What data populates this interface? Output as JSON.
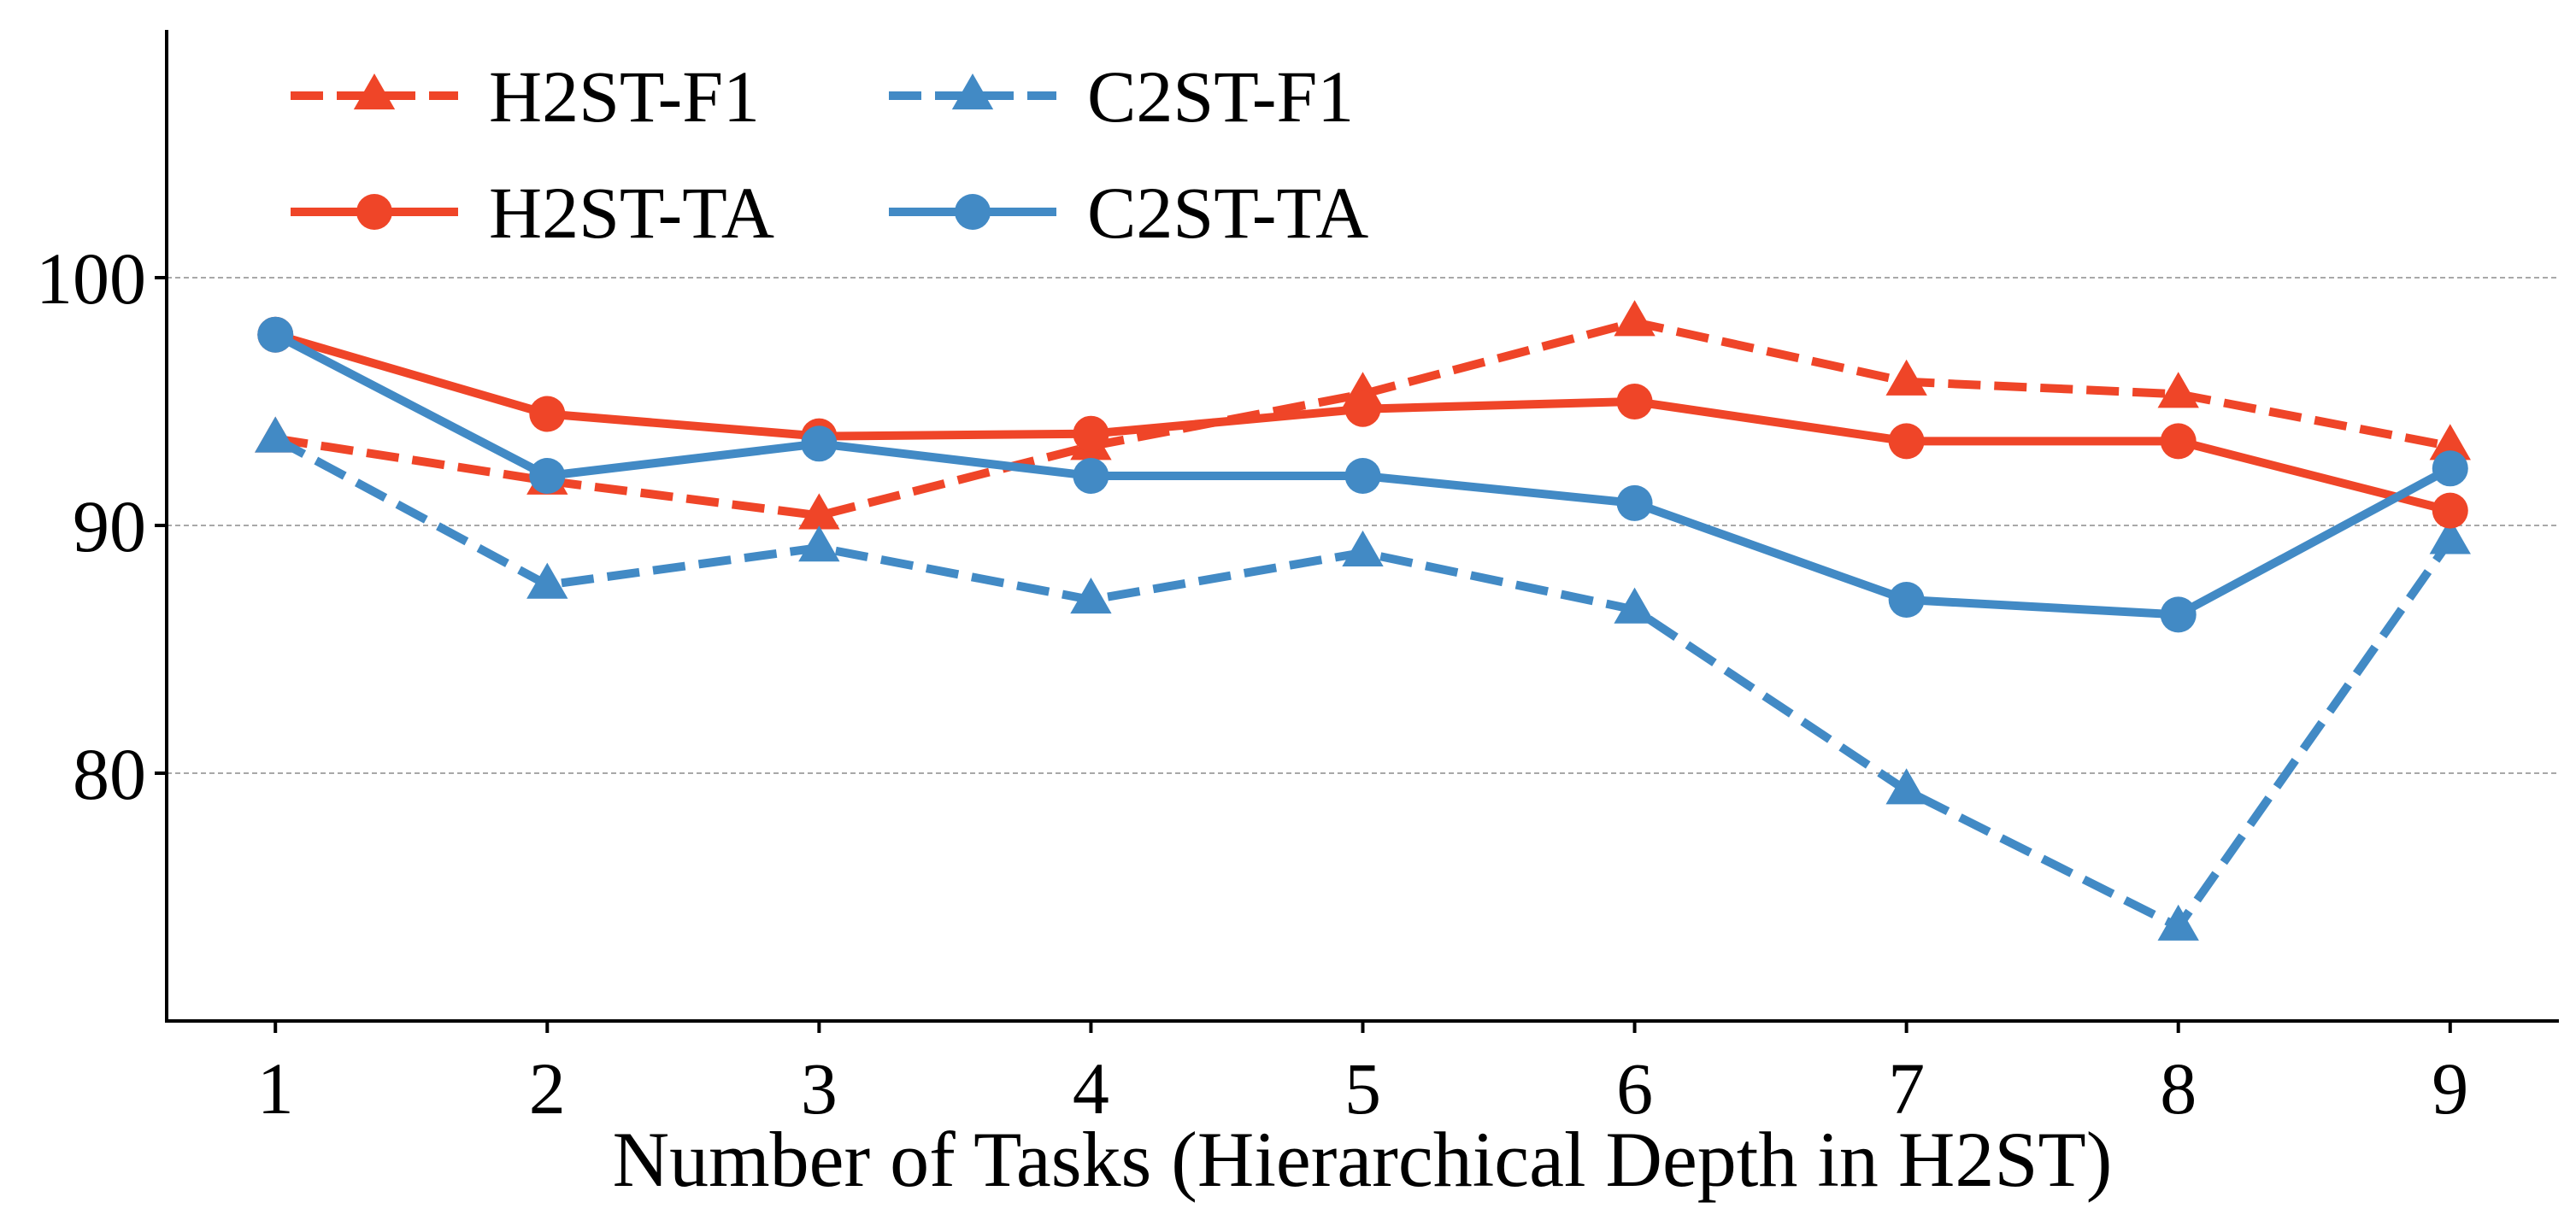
{
  "chart_data": {
    "type": "line",
    "title": "",
    "xlabel": "Number of Tasks (Hierarchical Depth in H2ST)",
    "ylabel": "",
    "x": [
      1,
      2,
      3,
      4,
      5,
      6,
      7,
      8,
      9
    ],
    "xlim": [
      0.6,
      9.4
    ],
    "ylim": [
      70,
      110
    ],
    "yticks": [
      80,
      90,
      100
    ],
    "xticks": [
      1,
      2,
      3,
      4,
      5,
      6,
      7,
      8,
      9
    ],
    "grid": "y-dashed",
    "legend_position": "top-left",
    "series": [
      {
        "name": "H2ST-F1",
        "color": "#ef4528",
        "line_style": "dashed",
        "marker": "triangle",
        "values": [
          93.5,
          91.8,
          90.4,
          93.2,
          95.3,
          98.2,
          95.8,
          95.3,
          93.2
        ]
      },
      {
        "name": "C2ST-F1",
        "color": "#428ac5",
        "line_style": "dashed",
        "marker": "triangle",
        "values": [
          93.5,
          87.6,
          89.1,
          87.0,
          88.9,
          86.6,
          79.3,
          73.8,
          89.4
        ]
      },
      {
        "name": "H2ST-TA",
        "color": "#ef4528",
        "line_style": "solid",
        "marker": "circle",
        "values": [
          97.7,
          94.5,
          93.6,
          93.7,
          94.7,
          95.0,
          93.4,
          93.4,
          90.6
        ]
      },
      {
        "name": "C2ST-TA",
        "color": "#428ac5",
        "line_style": "solid",
        "marker": "circle",
        "values": [
          97.7,
          92.0,
          93.3,
          92.0,
          92.0,
          90.9,
          87.0,
          86.4,
          92.3
        ]
      }
    ]
  }
}
